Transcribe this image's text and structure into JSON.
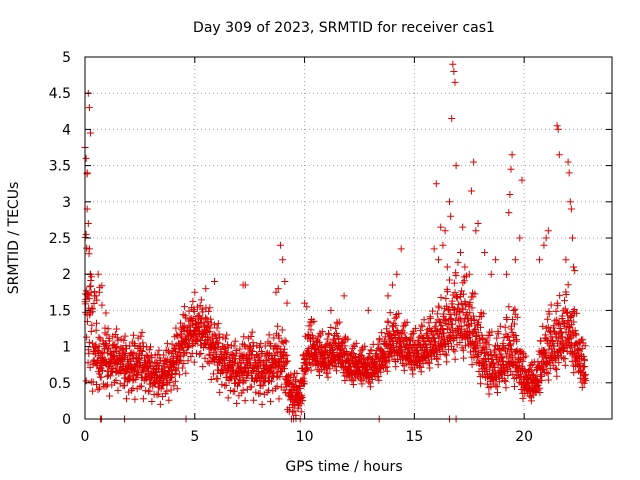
{
  "colors": {
    "series": "#e00000",
    "axis": "#000000",
    "grid": "#a0a0a0",
    "background": "#ffffff"
  },
  "chart_data": {
    "type": "scatter",
    "title": "Day 309 of 2023, SRMTID for receiver cas1",
    "xlabel": "GPS time / hours",
    "ylabel": "SRMTID / TECUs",
    "xlim": [
      0,
      24
    ],
    "ylim": [
      0,
      5
    ],
    "xticks": [
      0,
      5,
      10,
      15,
      20
    ],
    "xtick_labels": [
      "0",
      "5",
      "10",
      "15",
      "20"
    ],
    "yticks": [
      0,
      0.5,
      1,
      1.5,
      2,
      2.5,
      3,
      3.5,
      4,
      4.5,
      5
    ],
    "ytick_labels": [
      "0",
      "0.5",
      "1",
      "1.5",
      "2",
      "2.5",
      "3",
      "3.5",
      "4",
      "4.5",
      "5"
    ],
    "grid": true,
    "marker": "+",
    "series": [
      {
        "name": "SRMTID",
        "color": "#e00000",
        "x_range": [
          0,
          22.8
        ],
        "profile": [
          [
            0.0,
            1.6,
            1.1
          ],
          [
            0.3,
            1.3,
            1.0
          ],
          [
            0.6,
            0.85,
            0.5
          ],
          [
            1.0,
            0.75,
            0.45
          ],
          [
            1.5,
            0.8,
            0.4
          ],
          [
            2.0,
            0.65,
            0.4
          ],
          [
            2.5,
            0.75,
            0.45
          ],
          [
            3.0,
            0.6,
            0.35
          ],
          [
            3.5,
            0.55,
            0.35
          ],
          [
            4.0,
            0.7,
            0.4
          ],
          [
            4.5,
            1.05,
            0.45
          ],
          [
            5.0,
            1.2,
            0.4
          ],
          [
            5.5,
            1.15,
            0.45
          ],
          [
            6.0,
            0.85,
            0.45
          ],
          [
            6.5,
            0.7,
            0.4
          ],
          [
            7.0,
            0.6,
            0.4
          ],
          [
            7.5,
            0.75,
            0.45
          ],
          [
            8.0,
            0.6,
            0.4
          ],
          [
            8.5,
            0.7,
            0.45
          ],
          [
            9.0,
            0.8,
            0.5
          ],
          [
            9.4,
            0.3,
            0.3
          ],
          [
            9.8,
            0.3,
            0.3
          ],
          [
            10.2,
            1.0,
            0.45
          ],
          [
            10.6,
            0.85,
            0.35
          ],
          [
            11.0,
            0.8,
            0.35
          ],
          [
            11.5,
            0.95,
            0.4
          ],
          [
            12.0,
            0.7,
            0.35
          ],
          [
            12.5,
            0.7,
            0.3
          ],
          [
            13.0,
            0.65,
            0.3
          ],
          [
            13.5,
            0.8,
            0.35
          ],
          [
            14.0,
            1.05,
            0.45
          ],
          [
            14.5,
            0.95,
            0.4
          ],
          [
            15.0,
            0.85,
            0.35
          ],
          [
            15.5,
            0.95,
            0.4
          ],
          [
            16.0,
            1.05,
            0.45
          ],
          [
            16.5,
            1.2,
            0.6
          ],
          [
            17.0,
            1.35,
            0.75
          ],
          [
            17.5,
            1.25,
            0.6
          ],
          [
            18.0,
            0.9,
            0.6
          ],
          [
            18.5,
            0.65,
            0.5
          ],
          [
            19.0,
            0.75,
            0.5
          ],
          [
            19.5,
            0.95,
            0.7
          ],
          [
            20.0,
            0.5,
            0.35
          ],
          [
            20.5,
            0.45,
            0.3
          ],
          [
            21.0,
            0.9,
            0.55
          ],
          [
            21.5,
            1.0,
            0.6
          ],
          [
            22.0,
            1.2,
            0.6
          ],
          [
            22.4,
            0.9,
            0.5
          ],
          [
            22.8,
            0.6,
            0.35
          ]
        ],
        "spikes": [
          [
            0.0,
            3.75
          ],
          [
            0.05,
            3.6
          ],
          [
            0.1,
            3.4
          ],
          [
            0.15,
            4.5
          ],
          [
            0.2,
            4.3
          ],
          [
            0.25,
            3.95
          ],
          [
            0.1,
            2.9
          ],
          [
            0.15,
            2.7
          ],
          [
            0.05,
            2.55
          ],
          [
            0.2,
            2.35
          ],
          [
            0.25,
            2.0
          ],
          [
            0.6,
            2.0
          ],
          [
            0.65,
            1.75
          ],
          [
            0.5,
            1.7
          ],
          [
            0.7,
            0.0
          ],
          [
            0.75,
            0.0
          ],
          [
            1.8,
            0.0
          ],
          [
            4.6,
            0.0
          ],
          [
            5.0,
            1.75
          ],
          [
            5.5,
            1.8
          ],
          [
            5.9,
            1.9
          ],
          [
            7.2,
            1.85
          ],
          [
            7.3,
            1.85
          ],
          [
            8.7,
            1.75
          ],
          [
            8.8,
            1.8
          ],
          [
            8.9,
            2.4
          ],
          [
            9.0,
            2.2
          ],
          [
            9.1,
            1.9
          ],
          [
            9.2,
            1.6
          ],
          [
            9.3,
            0.1
          ],
          [
            9.4,
            0.0
          ],
          [
            9.45,
            0.2
          ],
          [
            9.5,
            0.0
          ],
          [
            9.6,
            0.05
          ],
          [
            9.7,
            0.15
          ],
          [
            9.8,
            0.0
          ],
          [
            9.85,
            0.1
          ],
          [
            10.0,
            1.6
          ],
          [
            10.1,
            1.55
          ],
          [
            11.2,
            1.5
          ],
          [
            11.8,
            1.7
          ],
          [
            12.9,
            1.5
          ],
          [
            13.4,
            0.0
          ],
          [
            13.8,
            1.7
          ],
          [
            14.0,
            1.85
          ],
          [
            14.2,
            2.0
          ],
          [
            14.4,
            2.35
          ],
          [
            15.9,
            2.35
          ],
          [
            16.0,
            3.25
          ],
          [
            16.1,
            2.2
          ],
          [
            16.2,
            2.65
          ],
          [
            16.3,
            2.4
          ],
          [
            16.4,
            2.6
          ],
          [
            16.5,
            2.1
          ],
          [
            16.6,
            3.0
          ],
          [
            16.65,
            2.8
          ],
          [
            16.7,
            4.15
          ],
          [
            16.75,
            4.9
          ],
          [
            16.8,
            4.8
          ],
          [
            16.85,
            4.65
          ],
          [
            16.9,
            3.5
          ],
          [
            16.6,
            0.0
          ],
          [
            16.9,
            0.0
          ],
          [
            17.1,
            2.3
          ],
          [
            17.2,
            2.65
          ],
          [
            17.3,
            2.1
          ],
          [
            17.5,
            2.0
          ],
          [
            17.7,
            3.55
          ],
          [
            17.6,
            3.15
          ],
          [
            17.8,
            2.6
          ],
          [
            17.9,
            2.7
          ],
          [
            18.2,
            2.3
          ],
          [
            18.5,
            2.0
          ],
          [
            18.7,
            2.2
          ],
          [
            19.2,
            2.0
          ],
          [
            19.3,
            2.85
          ],
          [
            19.35,
            3.1
          ],
          [
            19.4,
            3.45
          ],
          [
            19.45,
            3.65
          ],
          [
            19.6,
            2.2
          ],
          [
            19.8,
            2.5
          ],
          [
            19.9,
            3.3
          ],
          [
            20.7,
            2.2
          ],
          [
            20.9,
            2.4
          ],
          [
            21.0,
            2.5
          ],
          [
            21.1,
            2.6
          ],
          [
            21.5,
            4.05
          ],
          [
            21.55,
            4.0
          ],
          [
            21.6,
            3.65
          ],
          [
            21.9,
            2.2
          ],
          [
            22.0,
            3.55
          ],
          [
            22.05,
            3.4
          ],
          [
            22.1,
            3.0
          ],
          [
            22.15,
            2.9
          ],
          [
            22.2,
            2.5
          ],
          [
            22.25,
            2.1
          ],
          [
            22.3,
            2.05
          ]
        ]
      }
    ]
  }
}
